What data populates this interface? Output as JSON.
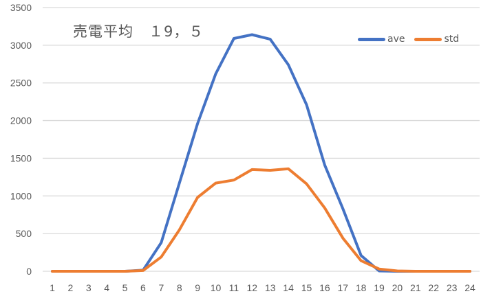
{
  "chart_data": {
    "type": "line",
    "title": "売電平均　１9，５",
    "xlabel": "",
    "ylabel": "",
    "x": [
      1,
      2,
      3,
      4,
      5,
      6,
      7,
      8,
      9,
      10,
      11,
      12,
      13,
      14,
      15,
      16,
      17,
      18,
      19,
      20,
      21,
      22,
      23,
      24
    ],
    "categories": [
      "1",
      "2",
      "3",
      "4",
      "5",
      "6",
      "7",
      "8",
      "9",
      "10",
      "11",
      "12",
      "13",
      "14",
      "15",
      "16",
      "17",
      "18",
      "19",
      "20",
      "21",
      "22",
      "23",
      "24"
    ],
    "series": [
      {
        "name": "ave",
        "color": "#4472C4",
        "values": [
          0,
          0,
          0,
          0,
          0,
          15,
          380,
          1170,
          1960,
          2620,
          3090,
          3140,
          3080,
          2740,
          2210,
          1410,
          830,
          210,
          5,
          0,
          0,
          0,
          0,
          0
        ]
      },
      {
        "name": "std",
        "color": "#ED7D31",
        "values": [
          0,
          0,
          0,
          0,
          0,
          10,
          190,
          550,
          980,
          1170,
          1210,
          1350,
          1340,
          1360,
          1160,
          840,
          440,
          140,
          30,
          5,
          0,
          0,
          0,
          0
        ]
      }
    ],
    "ylim": [
      0,
      3500
    ],
    "yticks": [
      0,
      500,
      1000,
      1500,
      2000,
      2500,
      3000,
      3500
    ],
    "grid": true,
    "gridline_color": "#D9D9D9",
    "legend_position": "top-right"
  },
  "title_text": "売電平均　１9，５",
  "legend": [
    {
      "label": "ave",
      "color": "#4472C4"
    },
    {
      "label": "std",
      "color": "#ED7D31"
    }
  ]
}
